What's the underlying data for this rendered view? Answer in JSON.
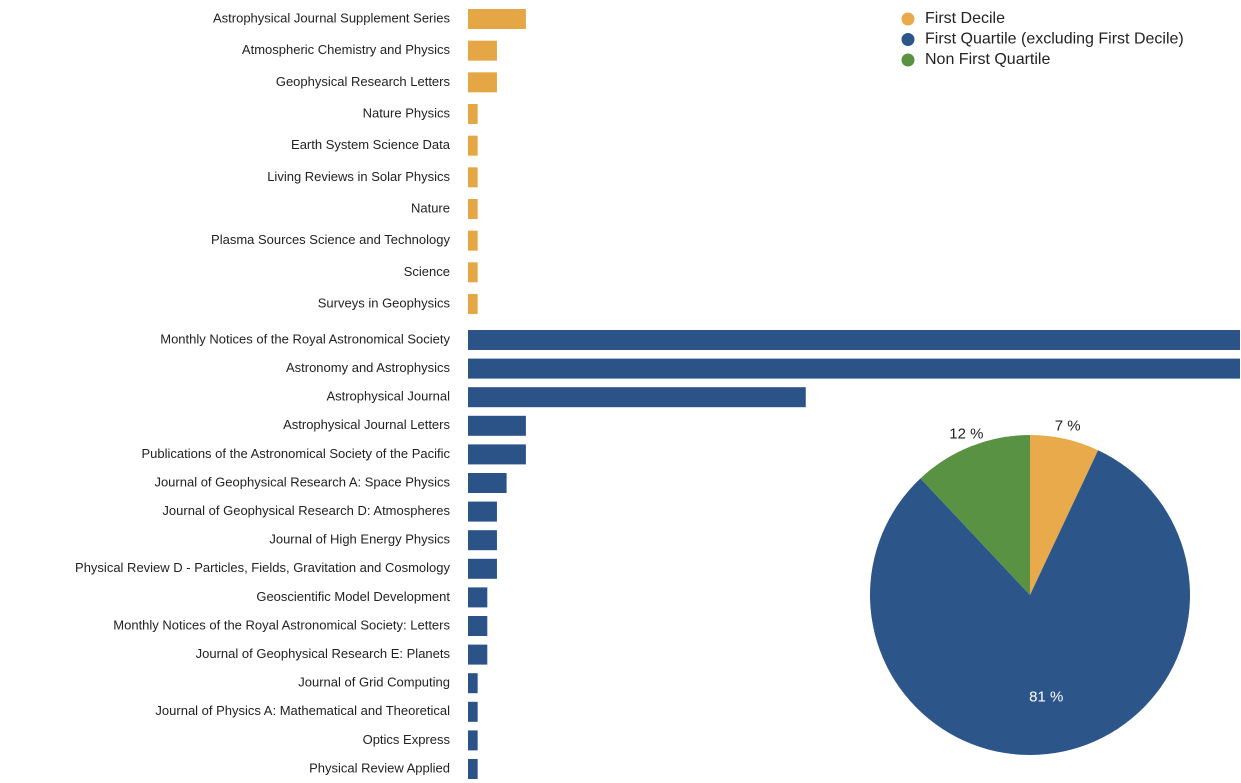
{
  "chart_data": [
    {
      "type": "bar",
      "orientation": "horizontal",
      "xlim": [
        0,
        80
      ],
      "series": [
        {
          "color": "#e5a645",
          "categories": [
            "Astrophysical Journal Supplement Series",
            "Atmospheric Chemistry and Physics",
            "Geophysical Research Letters",
            "Nature Physics",
            "Earth System Science Data",
            "Living Reviews in Solar Physics",
            "Nature",
            "Plasma Sources Science and Technology",
            "Science",
            "Surveys in Geophysics"
          ],
          "values": [
            6,
            3,
            3,
            1,
            1,
            1,
            1,
            1,
            1,
            1
          ]
        },
        {
          "color": "#2b5387",
          "categories": [
            "Monthly Notices of the Royal Astronomical Society",
            "Astronomy and Astrophysics",
            "Astrophysical Journal",
            "Astrophysical Journal Letters",
            "Publications of the Astronomical Society of the Pacific",
            "Journal of Geophysical Research A: Space Physics",
            "Journal of Geophysical Research D: Atmospheres",
            "Journal of High Energy Physics",
            "Physical Review D - Particles, Fields, Gravitation and Cosmology",
            "Geoscientific Model Development",
            "Monthly Notices of the Royal Astronomical Society: Letters",
            "Journal of Geophysical Research E: Planets",
            "Journal of Grid Computing",
            "Journal of Physics A: Mathematical and Theoretical",
            "Optics Express",
            "Physical Review Applied"
          ],
          "values": [
            80,
            80,
            35,
            6,
            6,
            4,
            3,
            3,
            3,
            2,
            2,
            2,
            1,
            1,
            1,
            1
          ]
        }
      ]
    },
    {
      "type": "pie",
      "legend": "top-right",
      "categories": [
        "First Decile",
        "First Quartile (excluding First Decile)",
        "Non First Quartile"
      ],
      "values": [
        7,
        81,
        12
      ],
      "value_labels": [
        "7 %",
        "81 %",
        "12 %"
      ],
      "colors": [
        "#e8aa4b",
        "#2c5589",
        "#5a9243"
      ]
    }
  ]
}
